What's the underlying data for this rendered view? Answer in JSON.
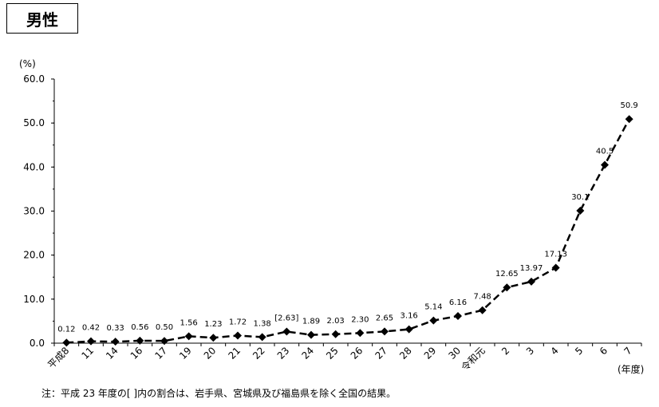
{
  "title": "男性",
  "note": "注：平成 23 年度の[ ]内の割合は、岩手県、宮城県及び福島県を除く全国の結果。",
  "chart_data": {
    "type": "line",
    "ylabel": "(%)",
    "xlabel": "(年度)",
    "ylim": [
      0,
      60
    ],
    "yticks": [
      "0.0",
      "10.0",
      "20.0",
      "30.0",
      "40.0",
      "50.0",
      "60.0"
    ],
    "categories": [
      "平成8",
      "11",
      "14",
      "16",
      "17",
      "19",
      "20",
      "21",
      "22",
      "23",
      "24",
      "25",
      "26",
      "27",
      "28",
      "29",
      "30",
      "令和元",
      "2",
      "3",
      "4",
      "5",
      "6",
      "7"
    ],
    "values": [
      0.12,
      0.42,
      0.33,
      0.56,
      0.5,
      1.56,
      1.23,
      1.72,
      1.38,
      2.63,
      1.89,
      2.03,
      2.3,
      2.65,
      3.16,
      5.14,
      6.16,
      7.48,
      12.65,
      13.97,
      17.13,
      30.1,
      40.5,
      50.9
    ],
    "data_labels": [
      "0.12",
      "0.42",
      "0.33",
      "0.56",
      "0.50",
      "1.56",
      "1.23",
      "1.72",
      "1.38",
      "[2.63]",
      "1.89",
      "2.03",
      "2.30",
      "2.65",
      "3.16",
      "5.14",
      "6.16",
      "7.48",
      "12.65",
      "13.97",
      "17.13",
      "30.1",
      "40.5",
      "50.9"
    ],
    "line_style": "dashed",
    "marker": "diamond",
    "grid": false
  }
}
